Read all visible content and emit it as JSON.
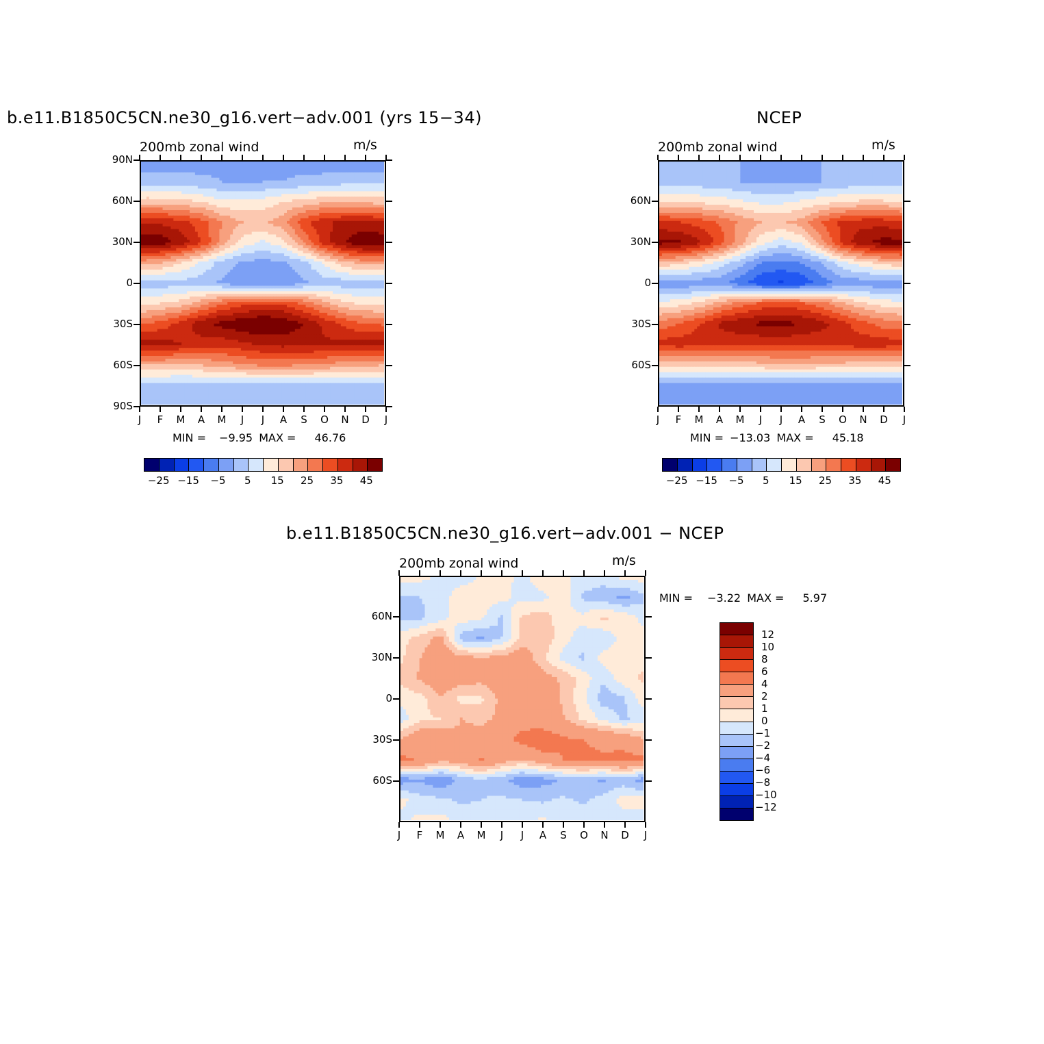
{
  "panels": [
    {
      "title": "b.e11.B1850C5CN.ne30_g16.vert−adv.001 (yrs 15−34)",
      "subtitle": "200mb zonal wind",
      "units": "m/s",
      "min_label": "MIN =",
      "min_value": "−9.95",
      "max_label": "MAX =",
      "max_value": "46.76"
    },
    {
      "title": "NCEP",
      "subtitle": "200mb zonal wind",
      "units": "m/s",
      "min_label": "MIN =",
      "min_value": "−13.03",
      "max_label": "MAX =",
      "max_value": "45.18"
    },
    {
      "title": "b.e11.B1850C5CN.ne30_g16.vert−adv.001 − NCEP",
      "subtitle": "200mb zonal wind",
      "units": "m/s",
      "min_label": "MIN =",
      "min_value": "−3.22",
      "max_label": "MAX =",
      "max_value": "5.97"
    }
  ],
  "colors": {
    "full_field": [
      "#00006e",
      "#0022b4",
      "#0b3ee6",
      "#2258f2",
      "#4a7cf0",
      "#7ca0f5",
      "#a9c4f9",
      "#d6e7fc",
      "#ffebd9",
      "#fcc8b0",
      "#f7a07e",
      "#f37850",
      "#ec4d22",
      "#cc2a10",
      "#a81606",
      "#7a0000"
    ],
    "difference": [
      "#00006e",
      "#0022b4",
      "#0b3ee6",
      "#2258f2",
      "#4a7cf0",
      "#7ca0f5",
      "#a9c4f9",
      "#d6e7fc",
      "#ffebd9",
      "#fcc8b0",
      "#f7a07e",
      "#f37850",
      "#ec4d22",
      "#cc2a10",
      "#a81606",
      "#7a0000"
    ]
  },
  "colorbar_full_labels": [
    "−25",
    "−15",
    "−5",
    "5",
    "15",
    "25",
    "35",
    "45"
  ],
  "colorbar_diff_labels": [
    "12",
    "10",
    "8",
    "6",
    "4",
    "2",
    "1",
    "0",
    "−1",
    "−2",
    "−4",
    "−6",
    "−8",
    "−10",
    "−12"
  ],
  "chart_data": [
    {
      "type": "heatmap",
      "title": "b.e11.B1850C5CN.ne30_g16.vert−adv.001 (yrs 15−34)",
      "subtitle": "200mb zonal wind",
      "units": "m/s",
      "x": [
        "J",
        "F",
        "M",
        "A",
        "M",
        "J",
        "J",
        "A",
        "S",
        "O",
        "N",
        "D",
        "J"
      ],
      "y_ticks": [
        "90N",
        "60N",
        "30N",
        "0",
        "30S",
        "60S",
        "90S"
      ],
      "ylim": [
        -90,
        90
      ],
      "levels": [
        -30,
        -25,
        -20,
        -15,
        -10,
        -5,
        0,
        5,
        10,
        15,
        20,
        25,
        30,
        35,
        40,
        45
      ],
      "grid_lats": [
        90,
        75,
        60,
        45,
        30,
        15,
        0,
        -15,
        -30,
        -45,
        -60,
        -75,
        -90
      ],
      "values": [
        [
          -8,
          -8,
          -7,
          -7,
          -6,
          -6,
          -6,
          -6,
          -7,
          -8,
          -8,
          -8,
          -8
        ],
        [
          -2,
          -2,
          -3,
          -4,
          -5,
          -6,
          -5,
          -5,
          -4,
          -3,
          -2,
          -2,
          -2
        ],
        [
          13,
          13,
          12,
          10,
          6,
          6,
          7,
          10,
          12,
          14,
          14,
          14,
          13
        ],
        [
          35,
          34,
          32,
          27,
          20,
          15,
          14,
          18,
          28,
          34,
          36,
          37,
          35
        ],
        [
          44,
          43,
          38,
          30,
          18,
          8,
          4,
          8,
          20,
          32,
          40,
          44,
          44
        ],
        [
          17,
          15,
          10,
          4,
          -2,
          -6,
          -7,
          -6,
          -2,
          6,
          13,
          17,
          17
        ],
        [
          -3,
          -3,
          -2,
          -3,
          -6,
          -9,
          -10,
          -9,
          -6,
          -3,
          -3,
          -3,
          -3
        ],
        [
          8,
          10,
          12,
          18,
          24,
          28,
          30,
          29,
          24,
          17,
          11,
          9,
          8
        ],
        [
          24,
          27,
          32,
          38,
          42,
          44,
          46,
          44,
          40,
          34,
          29,
          25,
          24
        ],
        [
          37,
          37,
          35,
          33,
          32,
          34,
          36,
          37,
          37,
          36,
          36,
          37,
          37
        ],
        [
          16,
          16,
          15,
          16,
          18,
          20,
          22,
          22,
          21,
          20,
          18,
          17,
          16
        ],
        [
          -2,
          -2,
          -2,
          -2,
          -2,
          -2,
          -2,
          -2,
          -2,
          -2,
          -2,
          -2,
          -2
        ],
        [
          -5,
          -5,
          -5,
          -5,
          -5,
          -5,
          -5,
          -5,
          -5,
          -5,
          -5,
          -5,
          -5
        ]
      ]
    },
    {
      "type": "heatmap",
      "title": "NCEP",
      "subtitle": "200mb zonal wind",
      "units": "m/s",
      "x": [
        "J",
        "F",
        "M",
        "A",
        "M",
        "J",
        "J",
        "A",
        "S",
        "O",
        "N",
        "D",
        "J"
      ],
      "y_ticks": [
        "60N",
        "30N",
        "0",
        "30S",
        "60S"
      ],
      "ylim": [
        -90,
        90
      ],
      "levels": [
        -30,
        -25,
        -20,
        -15,
        -10,
        -5,
        0,
        5,
        10,
        15,
        20,
        25,
        30,
        35,
        40,
        45
      ],
      "grid_lats": [
        90,
        75,
        60,
        45,
        30,
        15,
        0,
        -15,
        -30,
        -45,
        -60,
        -75,
        -90
      ],
      "values": [
        [
          -5,
          -5,
          -5,
          -5,
          -5,
          -5,
          -5,
          -5,
          -5,
          -5,
          -5,
          -5,
          -5
        ],
        [
          -3,
          -3,
          -3,
          -4,
          -5,
          -6,
          -6,
          -6,
          -5,
          -4,
          -3,
          -3,
          -3
        ],
        [
          10,
          10,
          9,
          8,
          6,
          4,
          4,
          6,
          8,
          10,
          11,
          11,
          10
        ],
        [
          31,
          30,
          28,
          24,
          19,
          15,
          14,
          17,
          25,
          31,
          33,
          33,
          31
        ],
        [
          42,
          41,
          36,
          28,
          17,
          7,
          2,
          6,
          18,
          31,
          39,
          42,
          42
        ],
        [
          14,
          12,
          8,
          3,
          -3,
          -10,
          -12,
          -10,
          -5,
          3,
          8,
          12,
          14
        ],
        [
          -9,
          -9,
          -8,
          -9,
          -13,
          -19,
          -21,
          -19,
          -13,
          -9,
          -8,
          -9,
          -9
        ],
        [
          6,
          8,
          11,
          17,
          22,
          26,
          27,
          26,
          22,
          16,
          11,
          8,
          6
        ],
        [
          22,
          25,
          30,
          36,
          39,
          41,
          42,
          40,
          37,
          32,
          27,
          23,
          22
        ],
        [
          32,
          33,
          32,
          32,
          31,
          31,
          31,
          31,
          31,
          32,
          33,
          33,
          32
        ],
        [
          12,
          12,
          12,
          12,
          13,
          14,
          15,
          15,
          14,
          14,
          13,
          12,
          12
        ],
        [
          -7,
          -7,
          -7,
          -7,
          -7,
          -7,
          -7,
          -7,
          -7,
          -7,
          -7,
          -7,
          -7
        ],
        [
          -10,
          -10,
          -10,
          -10,
          -10,
          -10,
          -10,
          -10,
          -10,
          -10,
          -10,
          -10,
          -10
        ]
      ]
    },
    {
      "type": "heatmap",
      "title": "b.e11.B1850C5CN.ne30_g16.vert−adv.001 − NCEP",
      "subtitle": "200mb zonal wind",
      "units": "m/s",
      "x": [
        "J",
        "F",
        "M",
        "A",
        "M",
        "J",
        "J",
        "A",
        "S",
        "O",
        "N",
        "D",
        "J"
      ],
      "y_ticks": [
        "60N",
        "30N",
        "0",
        "30S",
        "60S"
      ],
      "ylim": [
        -90,
        90
      ],
      "levels": [
        -12,
        -10,
        -8,
        -6,
        -4,
        -2,
        -1,
        0,
        1,
        2,
        4,
        6,
        8,
        10,
        12
      ],
      "grid_lats": [
        90,
        75,
        60,
        45,
        30,
        15,
        0,
        -15,
        -30,
        -45,
        -60,
        -75,
        -90
      ],
      "values": [
        [
          0.5,
          0.3,
          -0.3,
          -0.6,
          0.2,
          0.4,
          -0.3,
          0.6,
          0.3,
          -0.4,
          -0.6,
          0.3,
          0.4
        ],
        [
          -1.2,
          -1.0,
          -0.6,
          0.8,
          0.4,
          0.3,
          -0.4,
          -0.3,
          0.6,
          -1.2,
          -1.5,
          -2.3,
          -1.2
        ],
        [
          -1.4,
          -1.2,
          -0.4,
          0.6,
          0.2,
          -1.2,
          1.2,
          1.6,
          0.4,
          0.3,
          1.2,
          0.8,
          -0.4
        ],
        [
          0.6,
          1.4,
          2.4,
          -1.5,
          -2.2,
          -1.0,
          1.2,
          1.8,
          0.4,
          -0.5,
          -0.8,
          0.3,
          0.6
        ],
        [
          0.8,
          2.0,
          3.2,
          2.4,
          2.2,
          2.4,
          3.0,
          1.2,
          -0.3,
          -1.2,
          0.4,
          0.8,
          0.6
        ],
        [
          1.2,
          2.2,
          3.0,
          2.6,
          2.4,
          2.8,
          3.2,
          2.6,
          1.8,
          0.6,
          -0.8,
          0.6,
          1.2
        ],
        [
          0.4,
          0.6,
          2.0,
          0.6,
          0.8,
          2.4,
          2.2,
          3.6,
          1.8,
          0.3,
          -1.6,
          -1.2,
          0.6
        ],
        [
          -0.6,
          0.8,
          1.0,
          2.0,
          1.8,
          2.2,
          3.2,
          2.4,
          2.2,
          0.8,
          -0.2,
          -1.2,
          -0.6
        ],
        [
          2.0,
          3.2,
          3.0,
          2.2,
          2.4,
          3.2,
          4.6,
          5.6,
          4.2,
          4.0,
          3.6,
          3.2,
          2.0
        ],
        [
          4.4,
          3.8,
          2.6,
          2.8,
          4.2,
          2.8,
          2.0,
          3.0,
          4.0,
          4.4,
          4.2,
          4.6,
          4.4
        ],
        [
          -2.6,
          -2.2,
          -3.0,
          -1.6,
          -1.2,
          -1.8,
          -2.6,
          -2.4,
          -2.0,
          -1.8,
          -2.2,
          -1.6,
          -2.6
        ],
        [
          0.3,
          -0.6,
          -0.8,
          -1.2,
          -1.0,
          -0.8,
          -1.0,
          -1.2,
          -0.8,
          -1.2,
          -0.6,
          0.4,
          0.4
        ],
        [
          -0.4,
          0.3,
          0.4,
          -0.4,
          -0.3,
          -0.2,
          -0.3,
          0.2,
          -0.3,
          -0.4,
          -0.8,
          -0.6,
          -0.4
        ]
      ]
    }
  ]
}
